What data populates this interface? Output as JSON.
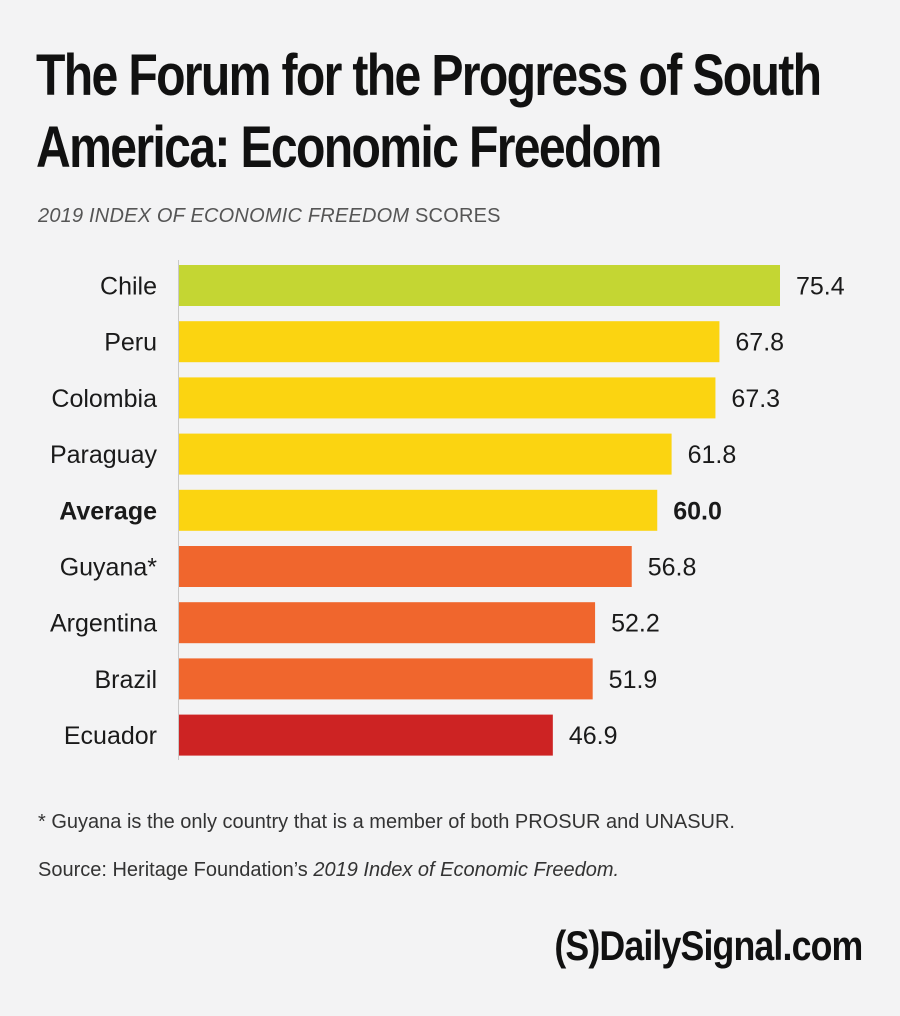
{
  "header": {
    "title": "The Forum for the Progress of South America: Economic Freedom",
    "subtitle_italic": "2019 INDEX OF ECONOMIC FREEDOM",
    "subtitle_plain": " SCORES"
  },
  "chart_data": {
    "type": "bar",
    "orientation": "horizontal",
    "categories": [
      "Chile",
      "Peru",
      "Colombia",
      "Paraguay",
      "Average",
      "Guyana*",
      "Argentina",
      "Brazil",
      "Ecuador"
    ],
    "values": [
      75.4,
      67.8,
      67.3,
      61.8,
      60.0,
      56.8,
      52.2,
      51.9,
      46.9
    ],
    "value_labels": [
      "75.4",
      "67.8",
      "67.3",
      "61.8",
      "60.0",
      "56.8",
      "52.2",
      "51.9",
      "46.9"
    ],
    "emphasized": [
      false,
      false,
      false,
      false,
      true,
      false,
      false,
      false,
      false
    ],
    "colors": [
      "#c4d633",
      "#fbd411",
      "#fbd411",
      "#fbd411",
      "#fbd411",
      "#f0662d",
      "#f0662d",
      "#f0662d",
      "#cd2323"
    ],
    "xlim": [
      0,
      75.4
    ],
    "grid": false,
    "legend": "none"
  },
  "footer": {
    "footnote": "* Guyana is the only country that is a member of both PROSUR and UNASUR.",
    "source_prefix": "Source: Heritage Foundation’s ",
    "source_italic": "2019 Index of Economic Freedom.",
    "brand": "(S)DailySignal.com"
  }
}
